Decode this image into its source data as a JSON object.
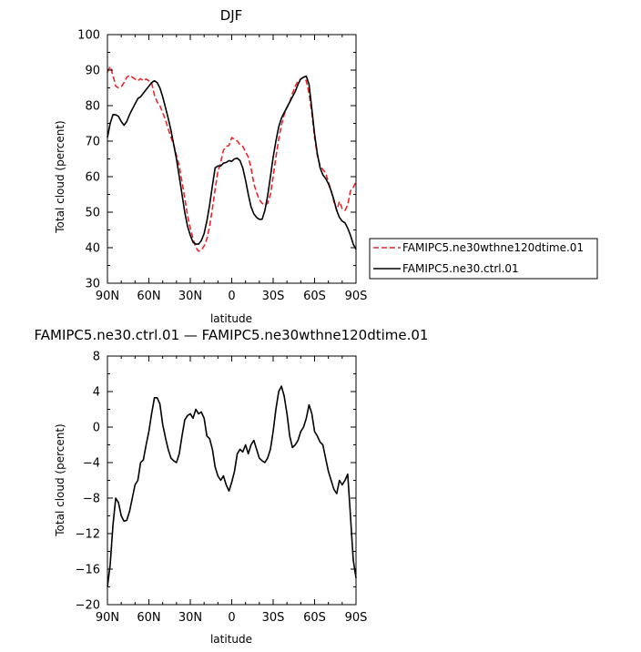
{
  "chart_data": [
    {
      "type": "line",
      "title": "DJF",
      "xlabel": "latitude",
      "ylabel": "Total cloud (percent)",
      "xlim": [
        90,
        -90
      ],
      "ylim": [
        30,
        100
      ],
      "xticks": [
        90,
        60,
        30,
        0,
        -30,
        -60,
        -90
      ],
      "xtick_labels": [
        "90N",
        "60N",
        "30N",
        "0",
        "30S",
        "60S",
        "90S"
      ],
      "yticks": [
        30,
        40,
        50,
        60,
        70,
        80,
        90,
        100
      ],
      "ytick_labels": [
        "30",
        "40",
        "50",
        "60",
        "70",
        "80",
        "90",
        "100"
      ],
      "legend_position": "right",
      "series": [
        {
          "name": "FAMIPC5.ne30wthne120dtime.01",
          "color": "#e8262c",
          "style": "dashed",
          "x": [
            90,
            88,
            86,
            84,
            82,
            80,
            78,
            76,
            74,
            72,
            70,
            68,
            66,
            64,
            62,
            60,
            58,
            56,
            54,
            52,
            50,
            48,
            46,
            44,
            42,
            40,
            38,
            36,
            34,
            32,
            30,
            28,
            26,
            24,
            22,
            20,
            18,
            16,
            14,
            12,
            10,
            8,
            6,
            4,
            2,
            0,
            -2,
            -4,
            -6,
            -8,
            -10,
            -12,
            -14,
            -16,
            -18,
            -20,
            -22,
            -24,
            -26,
            -28,
            -30,
            -32,
            -34,
            -36,
            -38,
            -40,
            -42,
            -44,
            -46,
            -48,
            -50,
            -52,
            -54,
            -56,
            -58,
            -60,
            -62,
            -64,
            -66,
            -68,
            -70,
            -72,
            -74,
            -76,
            -78,
            -80,
            -82,
            -84,
            -86,
            -88,
            -90
          ],
          "y": [
            89.5,
            91.0,
            88.5,
            85.5,
            85.0,
            85.3,
            86.5,
            88.0,
            88.5,
            88.0,
            87.5,
            87.0,
            87.6,
            87.0,
            87.5,
            87.0,
            86.5,
            83.0,
            81.0,
            80.0,
            78.0,
            76.0,
            73.5,
            71.0,
            69.0,
            66.0,
            63.0,
            58.5,
            54.0,
            49.0,
            45.5,
            42.5,
            40.0,
            39.0,
            39.3,
            40.5,
            42.5,
            46.0,
            51.0,
            56.5,
            61.5,
            64.0,
            67.5,
            68.5,
            68.8,
            71.0,
            70.5,
            70.0,
            69.0,
            68.5,
            67.0,
            65.5,
            62.5,
            58.0,
            55.5,
            53.5,
            52.5,
            52.0,
            52.5,
            55.0,
            60.0,
            65.5,
            70.5,
            74.5,
            77.5,
            79.5,
            81.0,
            83.5,
            85.5,
            87.0,
            87.5,
            88.0,
            87.0,
            83.5,
            78.0,
            71.0,
            66.0,
            63.0,
            62.0,
            61.0,
            58.5,
            56.0,
            53.0,
            50.5,
            53.0,
            51.0,
            50.5,
            52.0,
            56.0,
            57.0,
            58.5
          ]
        },
        {
          "name": "FAMIPC5.ne30.ctrl.01",
          "color": "#000000",
          "style": "solid",
          "x": [
            90,
            88,
            86,
            84,
            82,
            80,
            78,
            76,
            74,
            72,
            70,
            68,
            66,
            64,
            62,
            60,
            58,
            56,
            54,
            52,
            50,
            48,
            46,
            44,
            42,
            40,
            38,
            36,
            34,
            32,
            30,
            28,
            26,
            24,
            22,
            20,
            18,
            16,
            14,
            12,
            10,
            8,
            6,
            4,
            2,
            0,
            -2,
            -4,
            -6,
            -8,
            -10,
            -12,
            -14,
            -16,
            -18,
            -20,
            -22,
            -24,
            -26,
            -28,
            -30,
            -32,
            -34,
            -36,
            -38,
            -40,
            -42,
            -44,
            -46,
            -48,
            -50,
            -52,
            -54,
            -56,
            -58,
            -60,
            -62,
            -64,
            -66,
            -68,
            -70,
            -72,
            -74,
            -76,
            -78,
            -80,
            -82,
            -84,
            -86,
            -88,
            -90
          ],
          "y": [
            71.0,
            75.0,
            77.5,
            77.4,
            77.0,
            75.5,
            74.5,
            75.5,
            77.5,
            79.0,
            80.5,
            82.0,
            82.5,
            83.5,
            84.5,
            85.5,
            86.5,
            87.0,
            86.5,
            85.0,
            82.5,
            79.5,
            76.5,
            73.0,
            69.0,
            65.0,
            60.0,
            55.0,
            50.0,
            46.0,
            43.5,
            41.5,
            41.0,
            41.0,
            42.0,
            44.0,
            47.5,
            52.0,
            57.5,
            62.5,
            63.0,
            63.0,
            63.8,
            64.0,
            64.5,
            64.3,
            65.0,
            65.2,
            64.5,
            62.5,
            59.0,
            55.0,
            51.5,
            49.5,
            48.5,
            48.0,
            48.0,
            50.5,
            54.5,
            60.0,
            65.5,
            70.0,
            74.0,
            76.5,
            78.0,
            79.5,
            81.0,
            82.5,
            84.0,
            86.0,
            87.5,
            88.0,
            88.3,
            86.0,
            79.0,
            72.0,
            66.5,
            62.5,
            60.5,
            59.5,
            58.0,
            56.0,
            53.5,
            50.5,
            48.5,
            47.5,
            47.0,
            45.5,
            43.5,
            41.0,
            39.5
          ]
        }
      ]
    },
    {
      "type": "line",
      "title": "FAMIPC5.ne30.ctrl.01 — FAMIPC5.ne30wthne120dtime.01",
      "xlabel": "latitude",
      "ylabel": "Total cloud (percent)",
      "xlim": [
        90,
        -90
      ],
      "ylim": [
        -20,
        8
      ],
      "xticks": [
        90,
        60,
        30,
        0,
        -30,
        -60,
        -90
      ],
      "xtick_labels": [
        "90N",
        "60N",
        "30N",
        "0",
        "30S",
        "60S",
        "90S"
      ],
      "yticks": [
        -20,
        -16,
        -12,
        -8,
        -4,
        0,
        4,
        8
      ],
      "ytick_labels": [
        "−20",
        "−16",
        "−12",
        "−8",
        "−4",
        "0",
        "4",
        "8"
      ],
      "series": [
        {
          "name": "",
          "color": "#000000",
          "style": "solid",
          "x": [
            90,
            88,
            86,
            84,
            82,
            80,
            78,
            76,
            74,
            72,
            70,
            68,
            66,
            64,
            62,
            60,
            58,
            56,
            54,
            52,
            50,
            48,
            46,
            44,
            42,
            40,
            38,
            36,
            34,
            32,
            30,
            28,
            26,
            24,
            22,
            20,
            18,
            16,
            14,
            12,
            10,
            8,
            6,
            4,
            2,
            0,
            -2,
            -4,
            -6,
            -8,
            -10,
            -12,
            -14,
            -16,
            -18,
            -20,
            -22,
            -24,
            -26,
            -28,
            -30,
            -32,
            -34,
            -36,
            -38,
            -40,
            -42,
            -44,
            -46,
            -48,
            -50,
            -52,
            -54,
            -56,
            -58,
            -60,
            -62,
            -64,
            -66,
            -68,
            -70,
            -72,
            -74,
            -76,
            -78,
            -80,
            -82,
            -84,
            -86,
            -88,
            -90
          ],
          "y": [
            -18.0,
            -15.5,
            -11.0,
            -8.0,
            -8.5,
            -10.0,
            -10.6,
            -10.5,
            -9.5,
            -8.0,
            -6.5,
            -6.0,
            -4.0,
            -3.7,
            -2.0,
            -0.5,
            1.5,
            3.3,
            3.3,
            2.6,
            0.3,
            -1.2,
            -2.5,
            -3.5,
            -3.8,
            -4.0,
            -3.0,
            -1.0,
            0.8,
            1.3,
            1.5,
            1.0,
            2.0,
            1.5,
            1.7,
            1.0,
            -1.0,
            -1.3,
            -2.5,
            -4.5,
            -5.5,
            -6.0,
            -5.5,
            -6.5,
            -7.2,
            -6.2,
            -5.0,
            -3.0,
            -2.5,
            -2.8,
            -2.0,
            -3.0,
            -2.0,
            -1.5,
            -2.5,
            -3.5,
            -3.8,
            -4.0,
            -3.5,
            -2.5,
            -0.5,
            2.0,
            4.0,
            4.6,
            3.5,
            1.5,
            -1.0,
            -2.3,
            -2.0,
            -1.5,
            -0.5,
            0.0,
            1.0,
            2.5,
            1.5,
            -0.5,
            -1.0,
            -1.7,
            -2.0,
            -3.5,
            -5.0,
            -6.0,
            -7.0,
            -7.5,
            -6.0,
            -6.5,
            -6.0,
            -5.3,
            -10.0,
            -15.0,
            -17.0
          ]
        }
      ]
    }
  ]
}
